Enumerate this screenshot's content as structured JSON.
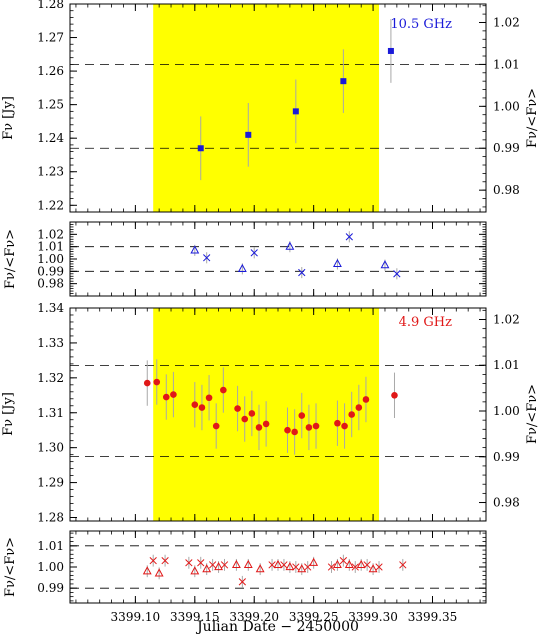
{
  "figure": {
    "xlabel": "Julian Date − 2450000",
    "x_ticks": [
      3399.1,
      3399.15,
      3399.2,
      3399.25,
      3399.3,
      3399.35
    ],
    "x_tick_labels": [
      "3399.10",
      "3399.15",
      "3399.20",
      "3399.25",
      "3399.30",
      "3399.35"
    ],
    "xlim": [
      3399.045,
      3399.395
    ],
    "highlight_color": "#ffff00",
    "colors": {
      "blue": "#1a1ad8",
      "red": "#e01818",
      "errorbar": "#a8a8a8"
    }
  },
  "chart_data": [
    {
      "type": "scatter",
      "panel": "10.5 GHz flux density",
      "annotation": "10.5 GHz",
      "ylabel": "Fν [Jy]",
      "ylabel_right": "Fν/<Fν>",
      "ylim": [
        1.218,
        1.28
      ],
      "y_ticks": [
        1.22,
        1.23,
        1.24,
        1.25,
        1.26,
        1.27,
        1.28
      ],
      "y_tick_labels": [
        "1.22",
        "1.23",
        "1.24",
        "1.25",
        "1.26",
        "1.27",
        "1.28"
      ],
      "y2_ticks": [
        0.98,
        0.99,
        1.0,
        1.01,
        1.02
      ],
      "y2_tick_labels": [
        "0.98",
        "0.99",
        "1.00",
        "1.01",
        "1.02"
      ],
      "y2_scale": {
        "mean": 1.2495
      },
      "ref_lines": [
        1.237,
        1.262
      ],
      "highlight_range": [
        3399.115,
        3399.305
      ],
      "marker": "square",
      "color": "#1a1ad8",
      "x": [
        3399.155,
        3399.195,
        3399.235,
        3399.275,
        3399.315
      ],
      "y": [
        1.237,
        1.241,
        1.248,
        1.257,
        1.266
      ],
      "yerr": [
        0.0095,
        0.0095,
        0.0095,
        0.0095,
        0.0095
      ]
    },
    {
      "type": "scatter",
      "panel": "10.5 GHz ratio",
      "ylabel": "Fν/<Fν>",
      "ylim": [
        0.97,
        1.03
      ],
      "y_ticks": [
        0.98,
        0.99,
        1.0,
        1.01,
        1.02
      ],
      "y_tick_labels": [
        "0.98",
        "0.99",
        "1.00",
        "1.01",
        "1.02"
      ],
      "ref_lines": [
        0.99,
        1.01
      ],
      "series": [
        {
          "marker": "triangle",
          "color": "#1a1ad8",
          "x": [
            3399.15,
            3399.19,
            3399.23,
            3399.27,
            3399.31
          ],
          "y": [
            1.007,
            0.992,
            1.01,
            0.996,
            0.995
          ],
          "yerr": [
            0.0045,
            0.0045,
            0.0045,
            0.0045,
            0.0045
          ]
        },
        {
          "marker": "cross",
          "color": "#1a1ad8",
          "x": [
            3399.16,
            3399.2,
            3399.24,
            3399.28,
            3399.32
          ],
          "y": [
            1.001,
            1.005,
            0.989,
            1.018,
            0.988
          ],
          "yerr": [
            0.0045,
            0.0045,
            0.0045,
            0.0045,
            0.0045
          ]
        }
      ]
    },
    {
      "type": "scatter",
      "panel": "4.9 GHz flux density",
      "annotation": "4.9 GHz",
      "ylabel": "Fν [Jy]",
      "ylabel_right": "Fν/<Fν>",
      "ylim": [
        1.279,
        1.34
      ],
      "y_ticks": [
        1.28,
        1.29,
        1.3,
        1.31,
        1.32,
        1.33,
        1.34
      ],
      "y_tick_labels": [
        "1.28",
        "1.29",
        "1.30",
        "1.31",
        "1.32",
        "1.33",
        "1.34"
      ],
      "y2_ticks": [
        0.98,
        0.99,
        1.0,
        1.01,
        1.02
      ],
      "y2_tick_labels": [
        "0.98",
        "0.99",
        "1.00",
        "1.01",
        "1.02"
      ],
      "y2_scale": {
        "mean": 1.3105
      },
      "ref_lines": [
        1.2975,
        1.3235
      ],
      "highlight_range": [
        3399.115,
        3399.305
      ],
      "marker": "circle",
      "color": "#e01818",
      "x": [
        3399.11,
        3399.118,
        3399.126,
        3399.132,
        3399.15,
        3399.156,
        3399.162,
        3399.168,
        3399.174,
        3399.186,
        3399.192,
        3399.198,
        3399.204,
        3399.21,
        3399.228,
        3399.234,
        3399.24,
        3399.246,
        3399.252,
        3399.27,
        3399.276,
        3399.282,
        3399.288,
        3399.294,
        3399.318
      ],
      "y": [
        1.3185,
        1.3188,
        1.3145,
        1.3152,
        1.3123,
        1.3115,
        1.3143,
        1.3062,
        1.3165,
        1.3112,
        1.3082,
        1.3098,
        1.3058,
        1.3068,
        1.305,
        1.3045,
        1.3092,
        1.3058,
        1.3062,
        1.307,
        1.3062,
        1.3095,
        1.3115,
        1.3138,
        1.315
      ],
      "yerr": [
        0.0065,
        0.0065,
        0.0065,
        0.0065,
        0.0065,
        0.0065,
        0.0065,
        0.0065,
        0.0065,
        0.0065,
        0.0065,
        0.0065,
        0.0065,
        0.0065,
        0.0065,
        0.0065,
        0.0065,
        0.0065,
        0.0065,
        0.0065,
        0.0065,
        0.0065,
        0.0065,
        0.0065,
        0.0065
      ]
    },
    {
      "type": "scatter",
      "panel": "4.9 GHz ratio",
      "ylabel": "Fν/<Fν>",
      "ylim": [
        0.983,
        1.017
      ],
      "y_ticks": [
        0.99,
        1.0,
        1.01
      ],
      "y_tick_labels": [
        "0.99",
        "1.00",
        "1.01"
      ],
      "ref_lines": [
        0.99,
        1.01
      ],
      "series": [
        {
          "marker": "triangle",
          "color": "#e01818",
          "x": [
            3399.11,
            3399.12,
            3399.15,
            3399.16,
            3399.17,
            3399.185,
            3399.195,
            3399.205,
            3399.22,
            3399.23,
            3399.24,
            3399.25,
            3399.27,
            3399.28,
            3399.29,
            3399.3
          ],
          "y": [
            0.998,
            0.997,
            0.998,
            0.999,
            1.0,
            1.001,
            1.001,
            0.999,
            1.001,
            1.0,
            0.999,
            1.002,
            1.001,
            1.001,
            1.001,
            0.999
          ],
          "yerr": [
            0.0028,
            0.0028,
            0.0028,
            0.0028,
            0.0028,
            0.0028,
            0.0028,
            0.0028,
            0.0028,
            0.0028,
            0.0028,
            0.0028,
            0.0028,
            0.0028,
            0.0028,
            0.0028
          ]
        },
        {
          "marker": "cross",
          "color": "#e01818",
          "x": [
            3399.115,
            3399.125,
            3399.145,
            3399.155,
            3399.165,
            3399.175,
            3399.19,
            3399.215,
            3399.225,
            3399.235,
            3399.245,
            3399.265,
            3399.275,
            3399.285,
            3399.295,
            3399.305,
            3399.325
          ],
          "y": [
            1.003,
            1.003,
            1.002,
            1.002,
            1.001,
            1.001,
            0.993,
            1.001,
            1.001,
            1.0,
            1.0,
            1.0,
            1.003,
            1.0,
            1.001,
            1.0,
            1.001
          ],
          "yerr": [
            0.0028,
            0.0028,
            0.0028,
            0.0028,
            0.0028,
            0.0028,
            0.0028,
            0.0028,
            0.0028,
            0.0028,
            0.0028,
            0.0028,
            0.0028,
            0.0028,
            0.0028,
            0.0028,
            0.0028
          ]
        }
      ]
    }
  ]
}
